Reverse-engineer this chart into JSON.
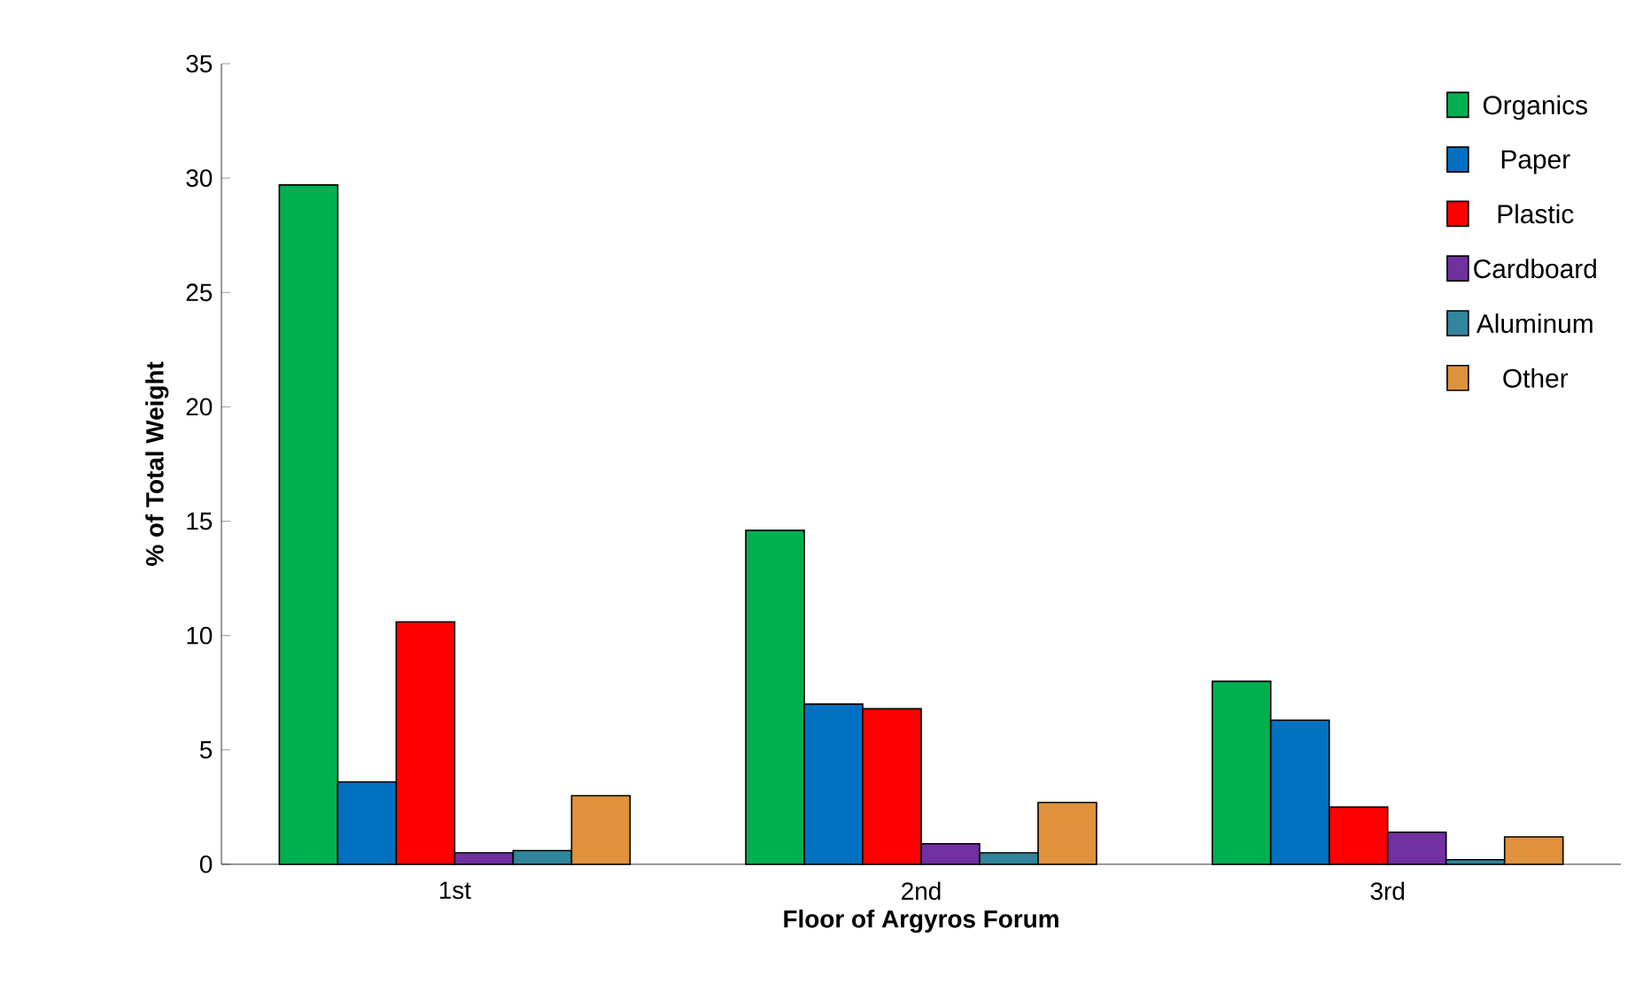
{
  "chart_data": {
    "type": "bar",
    "xlabel": "Floor of Argyros Forum",
    "ylabel": "% of Total Weight",
    "categories": [
      "1st",
      "2nd",
      "3rd"
    ],
    "series": [
      {
        "name": "Organics",
        "color": "#00b050",
        "values": [
          29.7,
          14.6,
          8.0
        ]
      },
      {
        "name": "Paper",
        "color": "#0070c0",
        "values": [
          3.6,
          7.0,
          6.3
        ]
      },
      {
        "name": "Plastic",
        "color": "#ff0000",
        "values": [
          10.6,
          6.8,
          2.5
        ]
      },
      {
        "name": "Cardboard",
        "color": "#7030a0",
        "values": [
          0.5,
          0.9,
          1.4
        ]
      },
      {
        "name": "Aluminum",
        "color": "#31859c",
        "values": [
          0.6,
          0.5,
          0.2
        ]
      },
      {
        "name": "Other",
        "color": "#e0913c",
        "values": [
          3.0,
          2.7,
          1.2
        ]
      }
    ],
    "ylim": [
      0,
      35
    ],
    "yticks": [
      0,
      5,
      10,
      15,
      20,
      25,
      30,
      35
    ],
    "grid": false,
    "legend": "top right"
  }
}
